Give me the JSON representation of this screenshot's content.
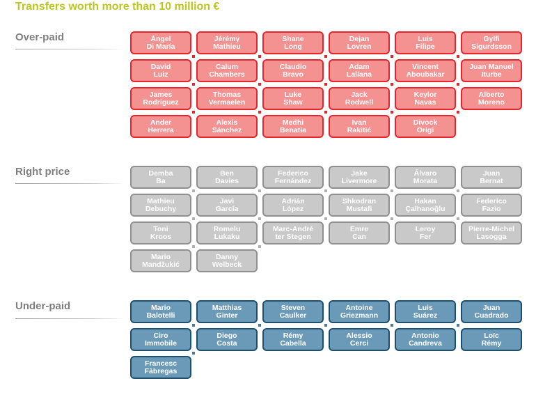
{
  "title": "Transfers worth more than 10 million €",
  "colors": {
    "title": "#b9c81e",
    "over_paid_fill": "#f49191",
    "over_paid_border": "#e3262d",
    "right_price_fill": "#c9c9c9",
    "right_price_border": "#8f8f8f",
    "under_paid_fill": "#6a9ab8",
    "under_paid_border": "#1d4f6e"
  },
  "sections": [
    {
      "label": "Over-paid",
      "players": [
        {
          "first": "Ángel",
          "last": "Di María"
        },
        {
          "first": "Jérémy",
          "last": "Mathieu"
        },
        {
          "first": "Shane",
          "last": "Long"
        },
        {
          "first": "Dejan",
          "last": "Lovren"
        },
        {
          "first": "Luis",
          "last": "Filipe"
        },
        {
          "first": "Gylfi",
          "last": "Sigurdsson"
        },
        {
          "first": "David",
          "last": "Luiz"
        },
        {
          "first": "Calum",
          "last": "Chambers"
        },
        {
          "first": "Claudio",
          "last": "Bravo"
        },
        {
          "first": "Adam",
          "last": "Lallana"
        },
        {
          "first": "Vincent",
          "last": "Aboubakar"
        },
        {
          "first": "Juan Manuel",
          "last": "Iturbe"
        },
        {
          "first": "James",
          "last": "Rodríguez"
        },
        {
          "first": "Thomas",
          "last": "Vermaelen"
        },
        {
          "first": "Luke",
          "last": "Shaw"
        },
        {
          "first": "Jack",
          "last": "Rodwell"
        },
        {
          "first": "Keylor",
          "last": "Navas"
        },
        {
          "first": "Alberto",
          "last": "Moreno"
        },
        {
          "first": "Ander",
          "last": "Herrera"
        },
        {
          "first": "Alexis",
          "last": "Sánchez"
        },
        {
          "first": "Medhi",
          "last": "Benatia"
        },
        {
          "first": "Ivan",
          "last": "Rakitić"
        },
        {
          "first": "Divock",
          "last": "Origi"
        }
      ]
    },
    {
      "label": "Right price",
      "players": [
        {
          "first": "Demba",
          "last": "Ba"
        },
        {
          "first": "Ben",
          "last": "Davies"
        },
        {
          "first": "Federico",
          "last": "Fernández"
        },
        {
          "first": "Jake",
          "last": "Livermore"
        },
        {
          "first": "Álvaro",
          "last": "Morata"
        },
        {
          "first": "Juan",
          "last": "Bernat"
        },
        {
          "first": "Mathieu",
          "last": "Debuchy"
        },
        {
          "first": "Javi",
          "last": "García"
        },
        {
          "first": "Adrián",
          "last": "López"
        },
        {
          "first": "Shkodran",
          "last": "Mustafi"
        },
        {
          "first": "Hakan",
          "last": "Çalhanoğlu"
        },
        {
          "first": "Federico",
          "last": "Fazio"
        },
        {
          "first": "Toni",
          "last": "Kroos"
        },
        {
          "first": "Romelu",
          "last": "Lukaku"
        },
        {
          "first": "Marc-André",
          "last": "ter Stegen"
        },
        {
          "first": "Emre",
          "last": "Can"
        },
        {
          "first": "Leroy",
          "last": "Fer"
        },
        {
          "first": "Pierre-Michel",
          "last": "Lasogga"
        },
        {
          "first": "Mario",
          "last": "Mandžukić"
        },
        {
          "first": "Danny",
          "last": "Welbeck"
        }
      ]
    },
    {
      "label": "Under-paid",
      "players": [
        {
          "first": "Mario",
          "last": "Balotelli"
        },
        {
          "first": "Matthias",
          "last": "Ginter"
        },
        {
          "first": "Steven",
          "last": "Caulker"
        },
        {
          "first": "Antoine",
          "last": "Griezmann"
        },
        {
          "first": "Luis",
          "last": "Suárez"
        },
        {
          "first": "Juan",
          "last": "Cuadrado"
        },
        {
          "first": "Ciro",
          "last": "Immobile"
        },
        {
          "first": "Diego",
          "last": "Costa"
        },
        {
          "first": "Rémy",
          "last": "Cabella"
        },
        {
          "first": "Alessio",
          "last": "Cerci"
        },
        {
          "first": "Antonio",
          "last": "Candreva"
        },
        {
          "first": "Loïc",
          "last": "Rémy"
        },
        {
          "first": "Francesc",
          "last": "Fàbregas"
        }
      ]
    }
  ]
}
